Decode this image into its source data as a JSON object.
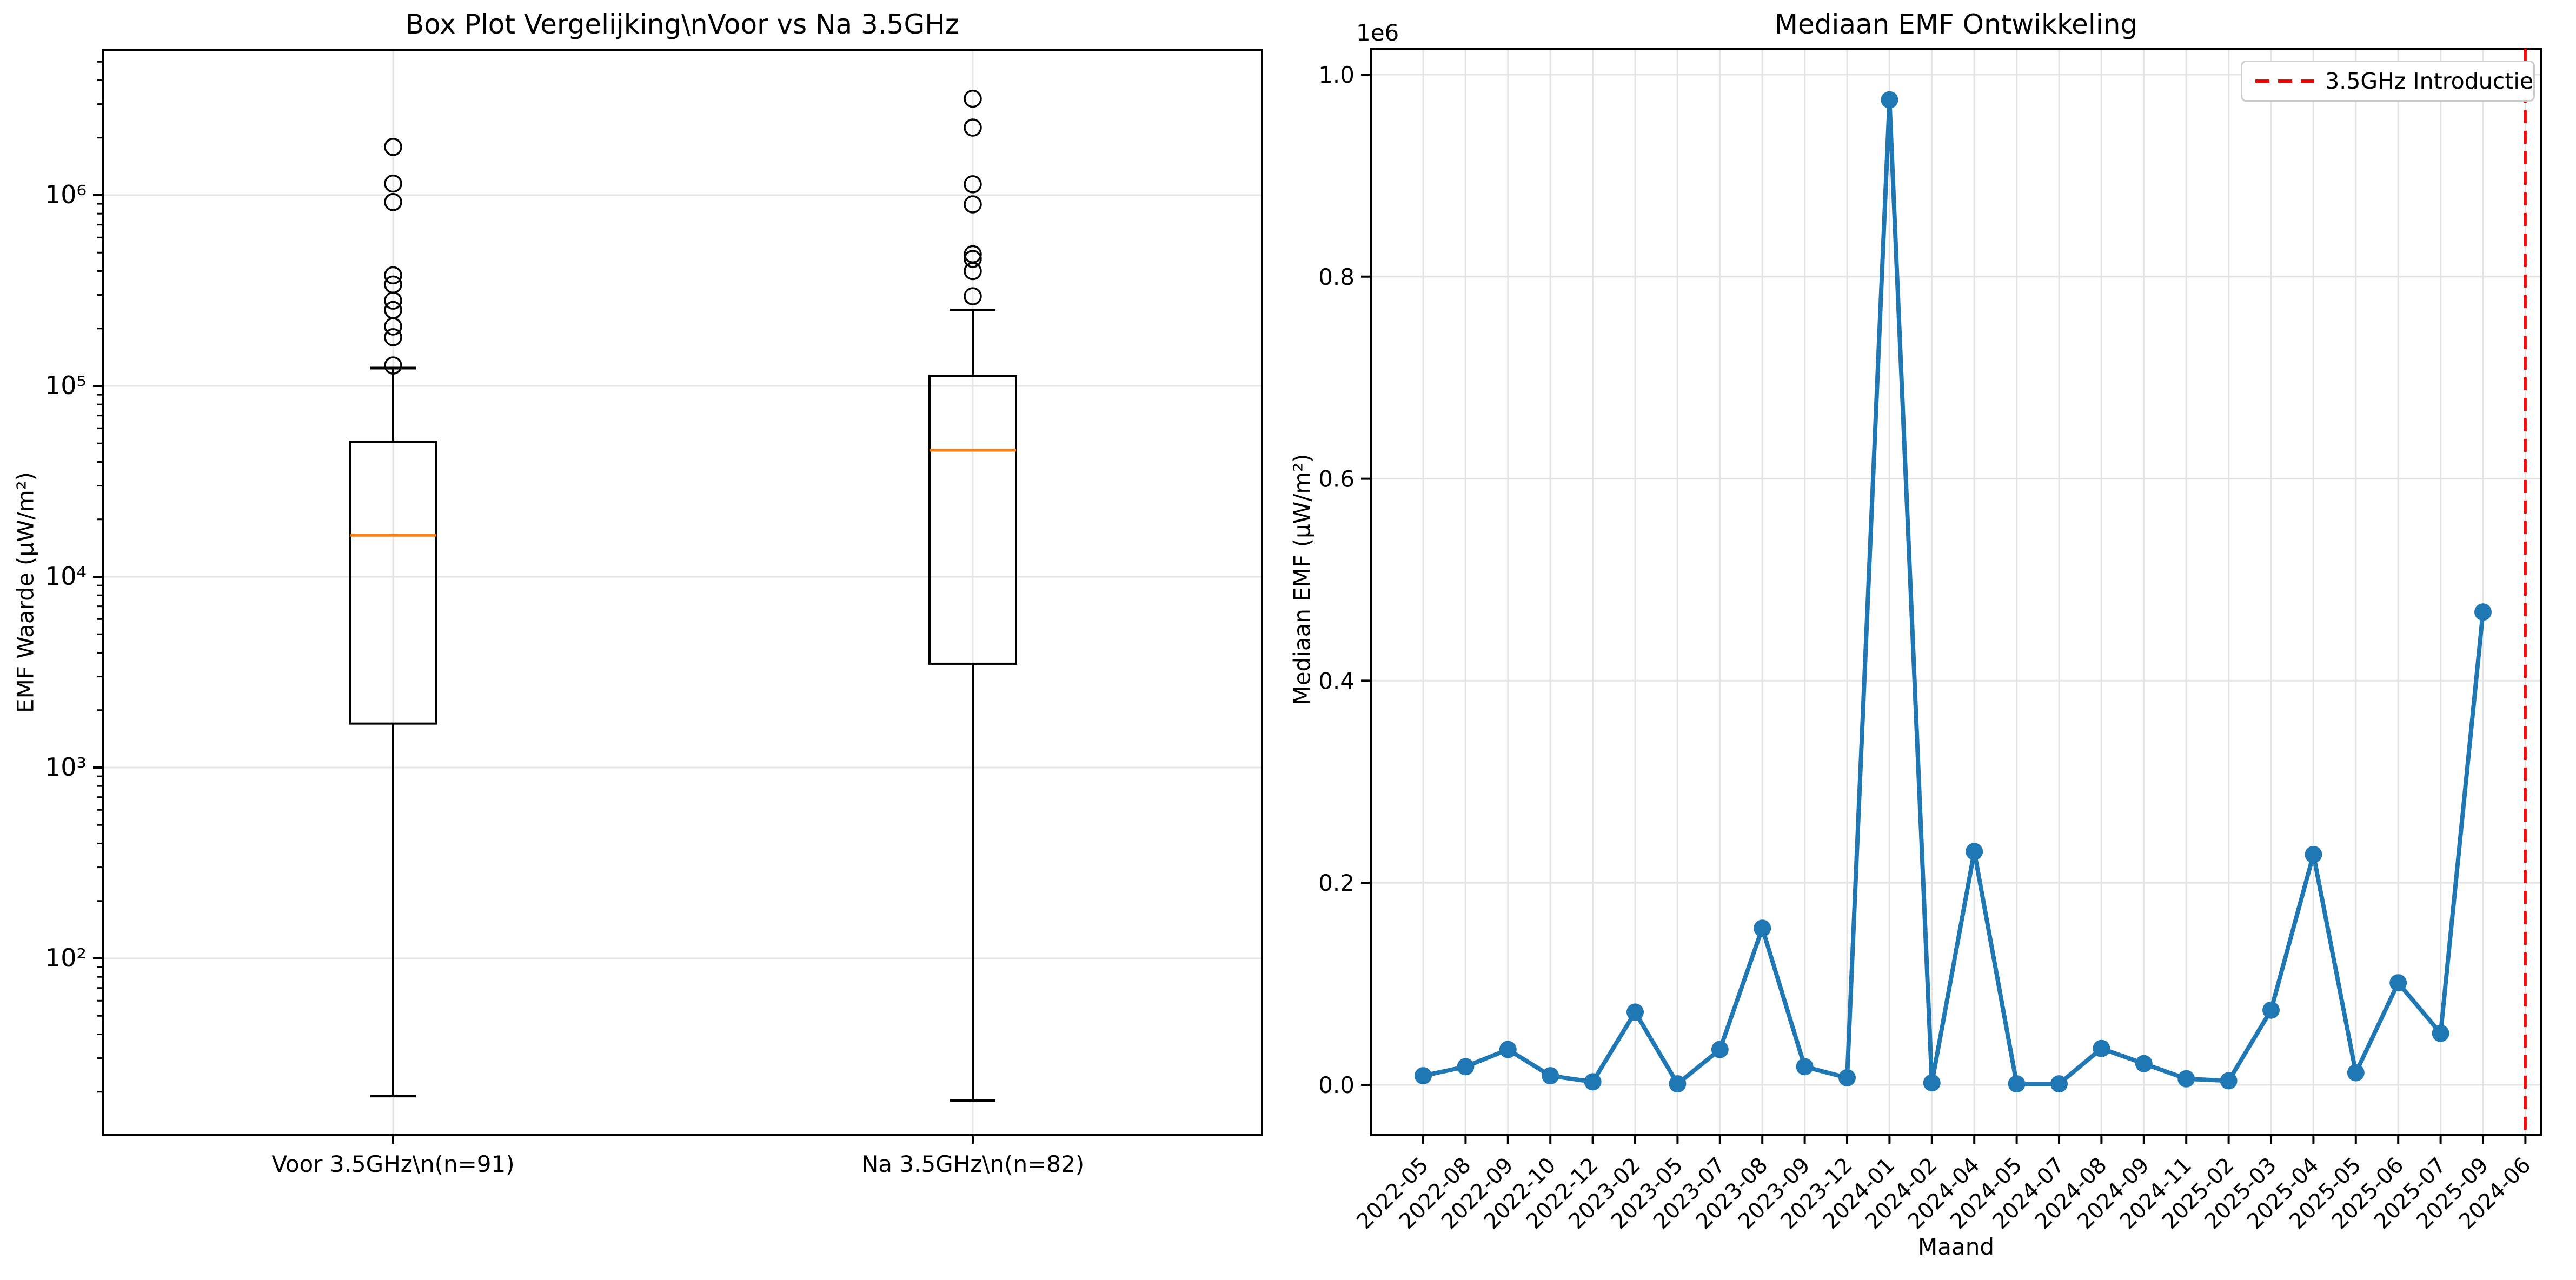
{
  "figure": {
    "background": "#ffffff"
  },
  "colors": {
    "box_line": "#000000",
    "median_line": "#ff7f0e",
    "series_line": "#1f77b4",
    "marker": "#1f77b4",
    "event_line": "#ff0000",
    "grid": "#e4e4e4",
    "spine": "#000000",
    "legend_border": "#cccccc",
    "text": "#000000"
  },
  "chart_data": [
    {
      "type": "boxplot",
      "title": "Box Plot Vergelijking\\nVoor vs Na 3.5GHz",
      "ylabel": "EMF Waarde (μW/m²)",
      "yscale": "log",
      "ylim": [
        9,
        5800000
      ],
      "grid": true,
      "ytick_values": [
        100,
        1000,
        10000,
        100000,
        1000000
      ],
      "ytick_labels": [
        "10²",
        "10³",
        "10⁴",
        "10⁵",
        "10⁶"
      ],
      "boxes": [
        {
          "label": "Voor 3.5GHz\\n(n=91)",
          "n": 91,
          "whislo": 19,
          "q1": 1700,
          "med": 16500,
          "q3": 51000,
          "whishi": 124000,
          "outliers": [
            1790000,
            1150000,
            920000,
            380000,
            340000,
            280000,
            250000,
            205000,
            180000,
            128000
          ]
        },
        {
          "label": "Na 3.5GHz\\n(n=82)",
          "n": 82,
          "whislo": 18,
          "q1": 3500,
          "med": 46000,
          "q3": 113000,
          "whishi": 250000,
          "outliers": [
            3200000,
            2260000,
            1140000,
            895000,
            490000,
            463000,
            400000,
            295000
          ]
        }
      ]
    },
    {
      "type": "line",
      "title": "Mediaan EMF Ontwikkeling",
      "xlabel": "Maand",
      "ylabel": "Mediaan EMF (μW/m²)",
      "offset_text": "1e6",
      "ylim": [
        -50000,
        1050000
      ],
      "grid": true,
      "ytick_values": [
        0,
        200000,
        400000,
        600000,
        800000,
        1000000
      ],
      "ytick_labels": [
        "0.0",
        "0.2",
        "0.4",
        "0.6",
        "0.8",
        "1.0"
      ],
      "categories": [
        "2022-05",
        "2022-08",
        "2022-09",
        "2022-10",
        "2022-12",
        "2023-02",
        "2023-05",
        "2023-07",
        "2023-08",
        "2023-09",
        "2023-12",
        "2024-01",
        "2024-02",
        "2024-04",
        "2024-05",
        "2024-07",
        "2024-08",
        "2024-09",
        "2024-11",
        "2025-02",
        "2025-03",
        "2025-04",
        "2025-05",
        "2025-06",
        "2025-07",
        "2025-09",
        "2024-06"
      ],
      "series": [
        {
          "name": "Mediaan EMF",
          "values": [
            9000,
            18000,
            35000,
            9000,
            3000,
            72000,
            1000,
            35000,
            155000,
            18000,
            7000,
            975000,
            2000,
            231000,
            1000,
            1000,
            36000,
            21000,
            6000,
            4000,
            74000,
            228000,
            12000,
            101000,
            51000,
            468000
          ]
        }
      ],
      "event_line": {
        "category": "2024-06",
        "label": "3.5GHz Introductie",
        "style": "dashed",
        "color": "#ff0000"
      },
      "legend": {
        "position": "upper right",
        "entries": [
          "3.5GHz Introductie"
        ]
      }
    }
  ]
}
